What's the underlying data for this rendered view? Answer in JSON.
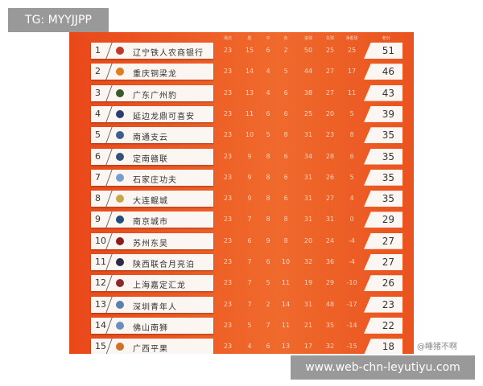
{
  "overlay": {
    "tg_label": "TG: MYYJJPP",
    "url_label": "www.web-chn-leyutiyu.com",
    "watermark": "@睡猪不啊"
  },
  "headers": [
    "场次",
    "胜",
    "平",
    "负",
    "进球",
    "失球",
    "净胜球",
    "积分"
  ],
  "colors": {
    "background": "#e9481a",
    "row": "#fbf6f2"
  },
  "rows": [
    {
      "rank": "1",
      "team": "辽宁铁人农商银行",
      "logo": "#c0392b",
      "stats": [
        "23",
        "15",
        "6",
        "2",
        "50",
        "25",
        "25"
      ],
      "pts": "51"
    },
    {
      "rank": "2",
      "team": "重庆铜梁龙",
      "logo": "#e07b20",
      "stats": [
        "23",
        "14",
        "4",
        "5",
        "44",
        "27",
        "17"
      ],
      "pts": "46"
    },
    {
      "rank": "3",
      "team": "广东广州豹",
      "logo": "#3a5a2a",
      "stats": [
        "23",
        "13",
        "4",
        "6",
        "38",
        "27",
        "11"
      ],
      "pts": "43"
    },
    {
      "rank": "4",
      "team": "延边龙鼎可喜安",
      "logo": "#2c3e70",
      "stats": [
        "23",
        "11",
        "6",
        "6",
        "25",
        "20",
        "5"
      ],
      "pts": "39"
    },
    {
      "rank": "5",
      "team": "南通支云",
      "logo": "#3b5f8f",
      "stats": [
        "23",
        "10",
        "5",
        "8",
        "31",
        "23",
        "8"
      ],
      "pts": "35"
    },
    {
      "rank": "6",
      "team": "定南赣联",
      "logo": "#34527a",
      "stats": [
        "23",
        "9",
        "8",
        "6",
        "34",
        "28",
        "6"
      ],
      "pts": "35"
    },
    {
      "rank": "7",
      "team": "石家庄功夫",
      "logo": "#7a9cc9",
      "stats": [
        "23",
        "9",
        "8",
        "6",
        "31",
        "26",
        "5"
      ],
      "pts": "35"
    },
    {
      "rank": "8",
      "team": "大连鲲城",
      "logo": "#c9a64a",
      "stats": [
        "23",
        "9",
        "8",
        "6",
        "31",
        "27",
        "4"
      ],
      "pts": "35"
    },
    {
      "rank": "9",
      "team": "南京城市",
      "logo": "#1f4f7a",
      "stats": [
        "23",
        "7",
        "8",
        "8",
        "31",
        "31",
        "0"
      ],
      "pts": "29"
    },
    {
      "rank": "10",
      "team": "苏州东吴",
      "logo": "#8b1e1e",
      "stats": [
        "23",
        "6",
        "9",
        "8",
        "20",
        "24",
        "-4"
      ],
      "pts": "27"
    },
    {
      "rank": "11",
      "team": "陕西联合月亮泊",
      "logo": "#2a2a4a",
      "stats": [
        "23",
        "7",
        "6",
        "10",
        "32",
        "36",
        "-4"
      ],
      "pts": "27"
    },
    {
      "rank": "12",
      "team": "上海嘉定汇龙",
      "logo": "#8b2a2a",
      "stats": [
        "23",
        "7",
        "5",
        "11",
        "19",
        "29",
        "-10"
      ],
      "pts": "26"
    },
    {
      "rank": "13",
      "team": "深圳青年人",
      "logo": "#5a7fb0",
      "stats": [
        "23",
        "7",
        "2",
        "14",
        "31",
        "48",
        "-17"
      ],
      "pts": "23"
    },
    {
      "rank": "14",
      "team": "佛山南狮",
      "logo": "#6a8fbf",
      "stats": [
        "23",
        "5",
        "7",
        "11",
        "21",
        "35",
        "-14"
      ],
      "pts": "22"
    },
    {
      "rank": "15",
      "team": "广西平果",
      "logo": "#d0702a",
      "stats": [
        "23",
        "4",
        "6",
        "13",
        "17",
        "32",
        "-15"
      ],
      "pts": "18"
    }
  ]
}
